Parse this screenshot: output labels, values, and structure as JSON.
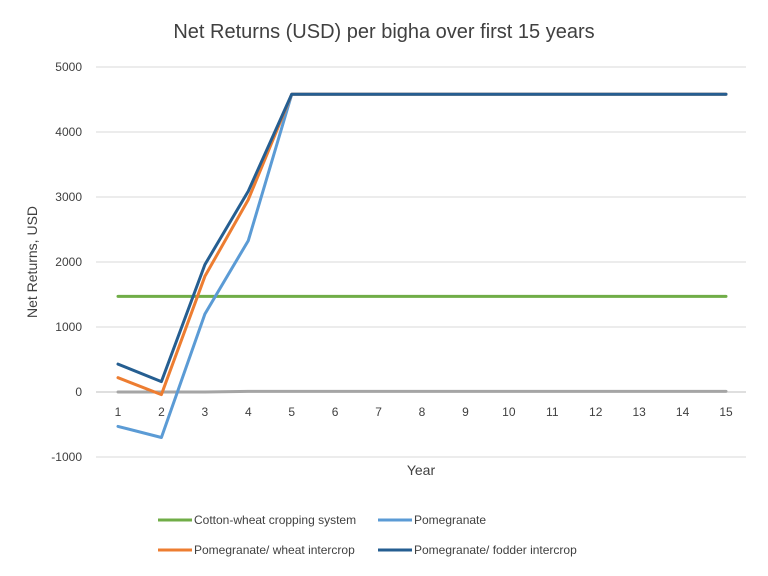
{
  "chart_data": {
    "type": "line",
    "title": "Net Returns (USD) per bigha over first 15 years",
    "xlabel": "Year",
    "ylabel": "Net Returns, USD",
    "x": [
      1,
      2,
      3,
      4,
      5,
      6,
      7,
      8,
      9,
      10,
      11,
      12,
      13,
      14,
      15
    ],
    "x_tick_labels": [
      "1",
      "2",
      "3",
      "4",
      "5",
      "6",
      "7",
      "8",
      "9",
      "10",
      "11",
      "12",
      "13",
      "14",
      "15"
    ],
    "ylim": [
      -1000,
      5000
    ],
    "y_ticks": [
      -1000,
      0,
      1000,
      2000,
      3000,
      4000,
      5000
    ],
    "y_tick_labels": [
      "-1000",
      "0",
      "1000",
      "2000",
      "3000",
      "4000",
      "5000"
    ],
    "grid": true,
    "legend_position": "bottom",
    "series": [
      {
        "name": "Cotton-wheat cropping system",
        "color": "#70ad47",
        "values": [
          1470,
          1470,
          1470,
          1470,
          1470,
          1470,
          1470,
          1470,
          1470,
          1470,
          1470,
          1470,
          1470,
          1470,
          1470
        ]
      },
      {
        "name": "Pomegranate",
        "color": "#5b9bd5",
        "values": [
          -530,
          -700,
          1200,
          2330,
          4580,
          4580,
          4580,
          4580,
          4580,
          4580,
          4580,
          4580,
          4580,
          4580,
          4580
        ]
      },
      {
        "name": "Pomegranate/ wheat intercrop",
        "color": "#ed7d31",
        "values": [
          220,
          -40,
          1780,
          2960,
          4580,
          4580,
          4580,
          4580,
          4580,
          4580,
          4580,
          4580,
          4580,
          4580,
          4580
        ]
      },
      {
        "name": "Pomegranate/ fodder intercrop",
        "color": "#255e91",
        "values": [
          430,
          160,
          1960,
          3090,
          4580,
          4580,
          4580,
          4580,
          4580,
          4580,
          4580,
          4580,
          4580,
          4580,
          4580
        ]
      },
      {
        "name": "",
        "color": "#a5a5a5",
        "values": [
          0,
          0,
          0,
          10,
          10,
          10,
          10,
          10,
          10,
          10,
          10,
          10,
          10,
          10,
          10
        ]
      }
    ]
  }
}
